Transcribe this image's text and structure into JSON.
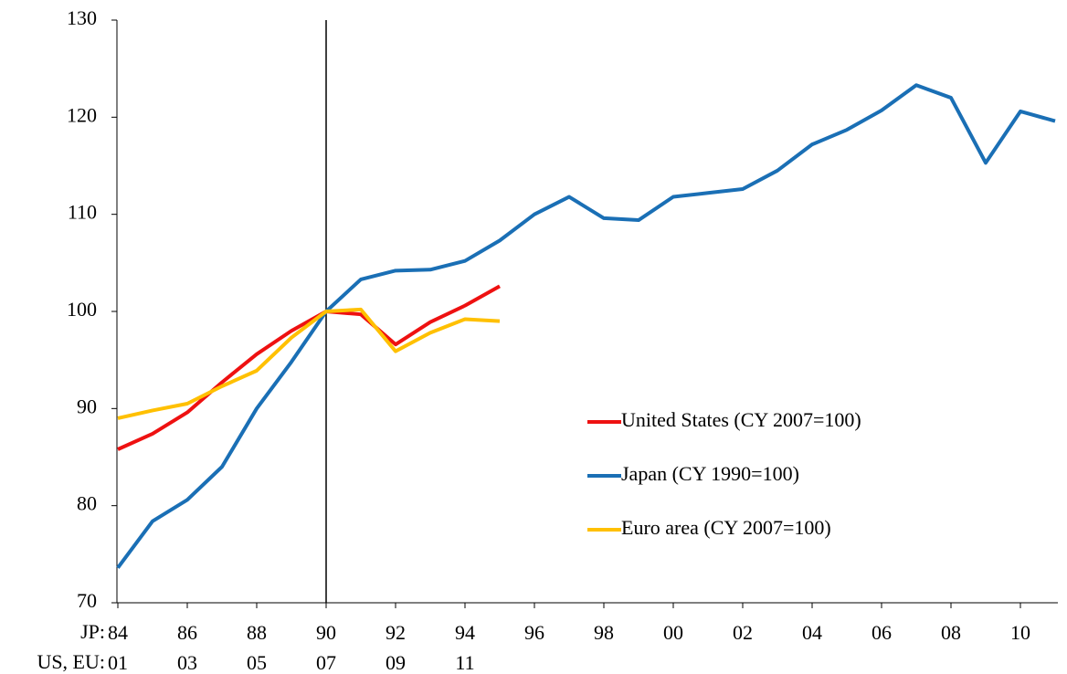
{
  "chart_data": {
    "type": "line",
    "categories": [
      "84",
      null,
      "86",
      null,
      "88",
      null,
      "90",
      null,
      "92",
      null,
      "94",
      null,
      "96",
      null,
      "98",
      null,
      "00",
      null,
      "02",
      null,
      "04",
      null,
      "06",
      null,
      "08",
      null,
      "10",
      null
    ],
    "second_row_categories": [
      "01",
      null,
      "03",
      null,
      "05",
      null,
      "07",
      null,
      "09",
      null,
      "11",
      null,
      null,
      null,
      null,
      null,
      null,
      null,
      null,
      null,
      null,
      null,
      null,
      null,
      null,
      null,
      null,
      null
    ],
    "first_row_title": "JP:",
    "second_row_title": "US, EU:",
    "vline_index": 6,
    "ylim": [
      70,
      130
    ],
    "yticks": [
      70,
      80,
      90,
      100,
      110,
      120,
      130
    ],
    "legend_position": "center-right",
    "series": [
      {
        "name": "United States (CY 2007=100)",
        "color": "#ee1111",
        "values": [
          85.8,
          87.4,
          89.6,
          92.7,
          95.6,
          98.0,
          100,
          99.7,
          96.6,
          98.9,
          100.6,
          102.6,
          null,
          null,
          null,
          null,
          null,
          null,
          null,
          null,
          null,
          null,
          null,
          null,
          null,
          null,
          null,
          null
        ]
      },
      {
        "name": "Japan (CY 1990=100)",
        "color": "#1a6fb5",
        "values": [
          73.6,
          78.4,
          80.6,
          84.0,
          90.0,
          94.8,
          100,
          103.3,
          104.2,
          104.3,
          105.2,
          107.3,
          110.0,
          111.8,
          109.6,
          109.4,
          111.8,
          112.2,
          112.6,
          114.5,
          117.2,
          118.7,
          120.7,
          123.3,
          122.0,
          115.3,
          120.6,
          119.6
        ]
      },
      {
        "name": "Euro area (CY 2007=100)",
        "color": "#ffc000",
        "values": [
          89.0,
          89.8,
          90.5,
          92.3,
          93.9,
          97.3,
          100,
          100.2,
          95.9,
          97.8,
          99.2,
          99.0,
          null,
          null,
          null,
          null,
          null,
          null,
          null,
          null,
          null,
          null,
          null,
          null,
          null,
          null,
          null,
          null
        ]
      }
    ]
  }
}
